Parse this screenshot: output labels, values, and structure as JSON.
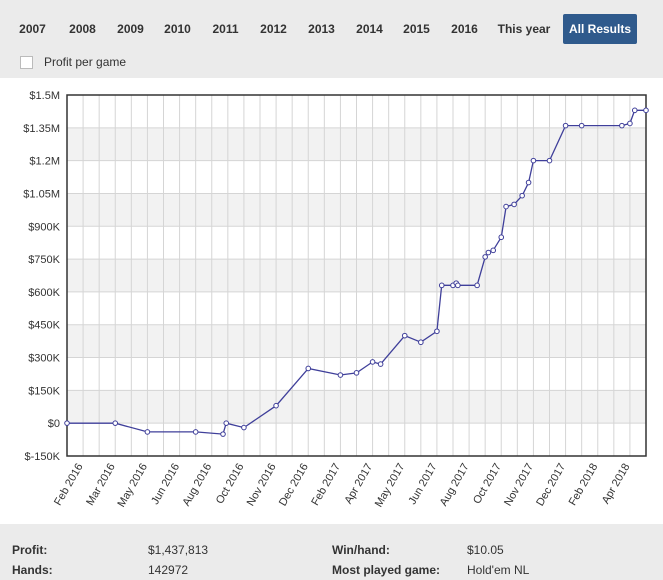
{
  "tabs": [
    {
      "label": "2007",
      "active": false
    },
    {
      "label": "2008",
      "active": false
    },
    {
      "label": "2009",
      "active": false
    },
    {
      "label": "2010",
      "active": false
    },
    {
      "label": "2011",
      "active": false
    },
    {
      "label": "2012",
      "active": false
    },
    {
      "label": "2013",
      "active": false
    },
    {
      "label": "2014",
      "active": false
    },
    {
      "label": "2015",
      "active": false
    },
    {
      "label": "2016",
      "active": false
    },
    {
      "label": "This year",
      "active": false
    },
    {
      "label": "All Results",
      "active": true
    }
  ],
  "profit_per_game": {
    "label": "Profit per game",
    "checked": false
  },
  "colors": {
    "accent": "#2f5a8c",
    "line": "#3f3f9a",
    "grid": "#d5d5d5",
    "band": "#f2f2f2",
    "axis_text": "#333333"
  },
  "chart_data": {
    "type": "line",
    "title": "",
    "xlabel": "",
    "ylabel": "",
    "grid": true,
    "ylim": [
      -150000,
      1500000
    ],
    "y_ticks": [
      {
        "value": 1500000,
        "label": "$1.5M"
      },
      {
        "value": 1350000,
        "label": "$1.35M"
      },
      {
        "value": 1200000,
        "label": "$1.2M"
      },
      {
        "value": 1050000,
        "label": "$1.05M"
      },
      {
        "value": 900000,
        "label": "$900K"
      },
      {
        "value": 750000,
        "label": "$750K"
      },
      {
        "value": 600000,
        "label": "$600K"
      },
      {
        "value": 450000,
        "label": "$450K"
      },
      {
        "value": 300000,
        "label": "$300K"
      },
      {
        "value": 150000,
        "label": "$150K"
      },
      {
        "value": 0,
        "label": "$0"
      },
      {
        "value": -150000,
        "label": "$-150K"
      }
    ],
    "x_tick_labels": [
      "Feb 2016",
      "Mar 2016",
      "May 2016",
      "Jun 2016",
      "Aug 2016",
      "Oct 2016",
      "Nov 2016",
      "Dec 2016",
      "Feb 2017",
      "Apr 2017",
      "May 2017",
      "Jun 2017",
      "Aug 2017",
      "Oct 2017",
      "Nov 2017",
      "Dec 2017",
      "Feb 2018",
      "Apr 2018"
    ],
    "x_range": [
      0,
      36
    ],
    "series": [
      {
        "x": [
          0,
          3,
          5,
          8,
          9.7,
          9.9,
          11,
          13,
          15,
          17,
          18,
          19,
          19.5,
          21,
          22,
          23,
          23.3,
          24,
          24.2,
          24.3,
          25.5,
          26,
          26.2,
          26.5,
          27,
          27.3,
          27.8,
          28.3,
          28.7,
          29,
          30,
          31,
          32,
          34.5,
          35,
          35.3,
          36
        ],
        "values": [
          0,
          0,
          -40000,
          -40000,
          -50000,
          0,
          -20000,
          80000,
          250000,
          220000,
          230000,
          280000,
          270000,
          400000,
          370000,
          420000,
          630000,
          630000,
          640000,
          630000,
          630000,
          760000,
          780000,
          790000,
          850000,
          990000,
          1000000,
          1040000,
          1100000,
          1200000,
          1200000,
          1360000,
          1360000,
          1360000,
          1370000,
          1430000,
          1430000
        ]
      }
    ]
  },
  "stats": {
    "profit_label": "Profit:",
    "profit_value": "$1,437,813",
    "win_hand_label": "Win/hand:",
    "win_hand_value": "$10.05",
    "hands_label": "Hands:",
    "hands_value": "142972",
    "most_played_label": "Most played game:",
    "most_played_value": "Hold'em NL"
  }
}
